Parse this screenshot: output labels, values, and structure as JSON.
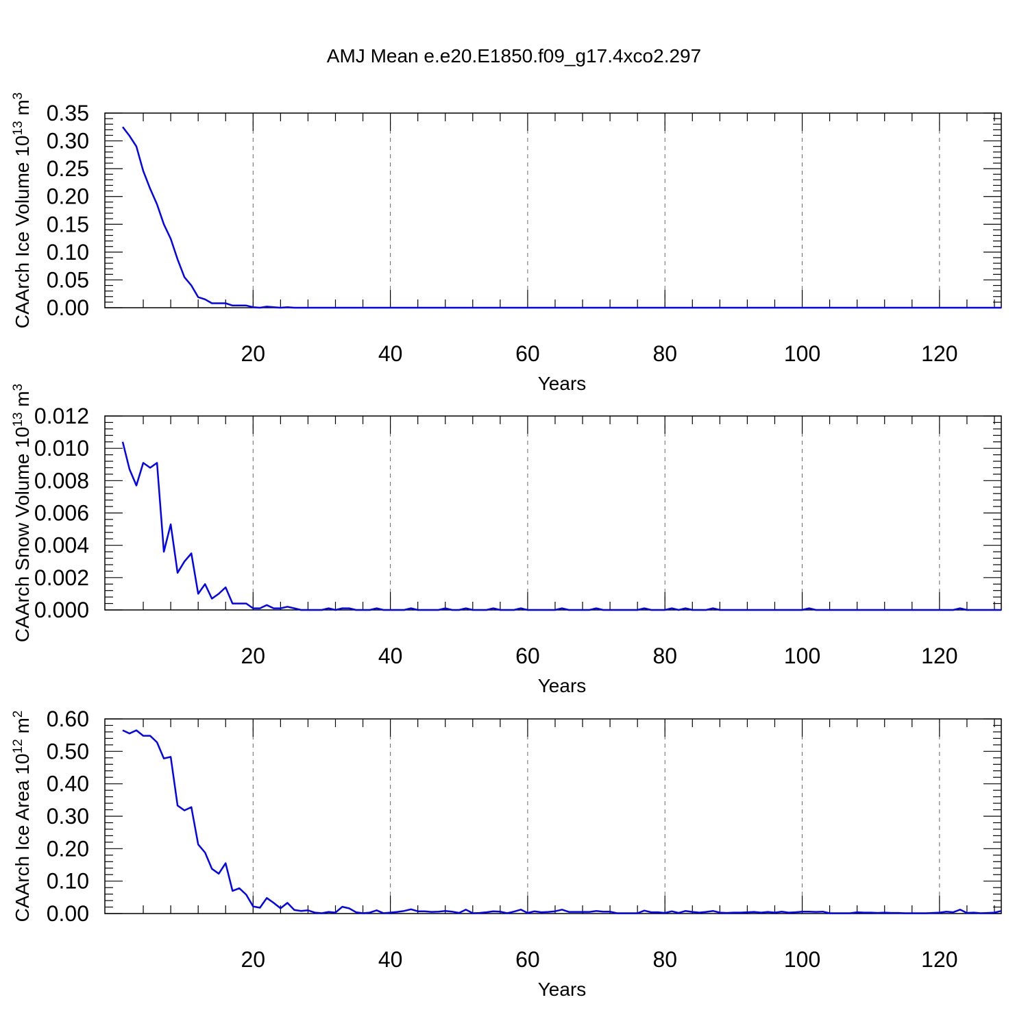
{
  "figure_title": "AMJ Mean e.e20.E1850.f09_g17.4xco2.297",
  "colors": {
    "series": "#0000ff",
    "axes": "#000000",
    "background": "#ffffff"
  },
  "chart_data": [
    {
      "type": "line",
      "ylabel": {
        "base": "CAArch Ice Volume 10",
        "exp": "13",
        "unit": " m",
        "unit_exp": "3"
      },
      "xlabel": "Years",
      "xlim": [
        1,
        129
      ],
      "ylim": [
        0,
        0.35
      ],
      "xticks": [
        20,
        40,
        60,
        80,
        100,
        120
      ],
      "yticks": [
        0.0,
        0.05,
        0.1,
        0.15,
        0.2,
        0.25,
        0.3,
        0.35
      ],
      "ytick_labels": [
        "0.00",
        "0.05",
        "0.10",
        "0.15",
        "0.20",
        "0.25",
        "0.30",
        "0.35"
      ],
      "y_minor_step": 0.01,
      "grid": "x-dashed",
      "series": [
        {
          "x_start": 1,
          "values": [
            0.325,
            0.309,
            0.29,
            0.246,
            0.214,
            0.186,
            0.15,
            0.124,
            0.087,
            0.055,
            0.04,
            0.019,
            0.015,
            0.008,
            0.008,
            0.008,
            0.004,
            0.004,
            0.004,
            0.001,
            0.0,
            0.002,
            0.001,
            0.0,
            0.001,
            0.0,
            0.0,
            0.0,
            0.0,
            0.0,
            0.0,
            0.0,
            0.0,
            0.0,
            0.0,
            0.0,
            0.0,
            0.0,
            0.0,
            0.0,
            0.0,
            0.0,
            0.0,
            0.0,
            0.0,
            0.0,
            0.0,
            0.0,
            0.0,
            0.0,
            0.0,
            0.0,
            0.0,
            0.0,
            0.0,
            0.0,
            0.0,
            0.0,
            0.0,
            0.0,
            0.0,
            0.0,
            0.0,
            0.0,
            0.0,
            0.0,
            0.0,
            0.0,
            0.0,
            0.0,
            0.0,
            0.0,
            0.0,
            0.0,
            0.0,
            0.0,
            0.0,
            0.0,
            0.0,
            0.0,
            0.0,
            0.0,
            0.0,
            0.0,
            0.0,
            0.0,
            0.0,
            0.0,
            0.0,
            0.0,
            0.0,
            0.0,
            0.0,
            0.0,
            0.0,
            0.0,
            0.0,
            0.0,
            0.0,
            0.0,
            0.0,
            0.0,
            0.0,
            0.0,
            0.0,
            0.0,
            0.0,
            0.0,
            0.0,
            0.0,
            0.0,
            0.0,
            0.0,
            0.0,
            0.0,
            0.0,
            0.0,
            0.0,
            0.0,
            0.0,
            0.0,
            0.0,
            0.0,
            0.0,
            0.0,
            0.0,
            0.0,
            0.0,
            0.0
          ]
        }
      ]
    },
    {
      "type": "line",
      "ylabel": {
        "base": "CAArch Snow Volume 10",
        "exp": "13",
        "unit": " m",
        "unit_exp": "3"
      },
      "xlabel": "Years",
      "xlim": [
        1,
        129
      ],
      "ylim": [
        0,
        0.012
      ],
      "xticks": [
        20,
        40,
        60,
        80,
        100,
        120
      ],
      "yticks": [
        0.0,
        0.002,
        0.004,
        0.006,
        0.008,
        0.01,
        0.012
      ],
      "ytick_labels": [
        "0.000",
        "0.002",
        "0.004",
        "0.006",
        "0.008",
        "0.010",
        "0.012"
      ],
      "y_minor_step": 0.0004,
      "grid": "x-dashed",
      "series": [
        {
          "x_start": 1,
          "values": [
            0.0104,
            0.0087,
            0.0077,
            0.0091,
            0.0088,
            0.0091,
            0.0036,
            0.0053,
            0.0023,
            0.003,
            0.0035,
            0.001,
            0.0016,
            0.0007,
            0.001,
            0.0014,
            0.0004,
            0.0004,
            0.0004,
            0.0001,
            0.0001,
            0.0003,
            0.0001,
            0.0001,
            0.0002,
            0.0001,
            0.0,
            0.0,
            0.0,
            0.0,
            0.0001,
            0.0,
            0.0001,
            0.0001,
            0.0,
            0.0,
            0.0,
            0.0001,
            0.0,
            0.0,
            0.0,
            0.0,
            0.0001,
            0.0,
            0.0,
            0.0,
            0.0,
            0.0001,
            0.0,
            0.0,
            0.0001,
            0.0,
            0.0,
            0.0,
            0.0001,
            0.0,
            0.0,
            0.0,
            0.0001,
            0.0,
            0.0,
            0.0,
            0.0,
            0.0,
            0.0001,
            0.0,
            0.0,
            0.0,
            0.0,
            0.0001,
            0.0,
            0.0,
            0.0,
            0.0,
            0.0,
            0.0,
            0.0001,
            0.0,
            0.0,
            0.0,
            0.0001,
            0.0,
            0.0001,
            0.0,
            0.0,
            0.0,
            0.0001,
            0.0,
            0.0,
            0.0,
            0.0,
            0.0,
            0.0,
            0.0,
            0.0,
            0.0,
            0.0,
            0.0,
            0.0,
            0.0,
            0.0001,
            0.0,
            0.0,
            0.0,
            0.0,
            0.0,
            0.0,
            0.0,
            0.0,
            0.0,
            0.0,
            0.0,
            0.0,
            0.0,
            0.0,
            0.0,
            0.0,
            0.0,
            0.0,
            0.0,
            0.0,
            0.0,
            0.0001,
            0.0,
            0.0,
            0.0,
            0.0,
            0.0,
            0.0
          ]
        }
      ]
    },
    {
      "type": "line",
      "ylabel": {
        "base": "CAArch Ice Area 10",
        "exp": "12",
        "unit": " m",
        "unit_exp": "2"
      },
      "xlabel": "Years",
      "xlim": [
        1,
        129
      ],
      "ylim": [
        0,
        0.6
      ],
      "xticks": [
        20,
        40,
        60,
        80,
        100,
        120
      ],
      "yticks": [
        0.0,
        0.1,
        0.2,
        0.3,
        0.4,
        0.5,
        0.6
      ],
      "ytick_labels": [
        "0.00",
        "0.10",
        "0.20",
        "0.30",
        "0.40",
        "0.50",
        "0.60"
      ],
      "y_minor_step": 0.02,
      "grid": "x-dashed",
      "series": [
        {
          "x_start": 1,
          "values": [
            0.565,
            0.555,
            0.565,
            0.548,
            0.548,
            0.528,
            0.478,
            0.483,
            0.333,
            0.318,
            0.328,
            0.213,
            0.188,
            0.138,
            0.123,
            0.155,
            0.07,
            0.078,
            0.058,
            0.022,
            0.018,
            0.048,
            0.033,
            0.016,
            0.033,
            0.011,
            0.008,
            0.01,
            0.003,
            0.001,
            0.005,
            0.003,
            0.021,
            0.016,
            0.004,
            0.001,
            0.003,
            0.01,
            0.001,
            0.003,
            0.005,
            0.008,
            0.013,
            0.007,
            0.007,
            0.005,
            0.006,
            0.008,
            0.006,
            0.002,
            0.012,
            0.001,
            0.002,
            0.004,
            0.007,
            0.006,
            0.001,
            0.006,
            0.012,
            0.002,
            0.007,
            0.004,
            0.005,
            0.007,
            0.012,
            0.005,
            0.005,
            0.005,
            0.005,
            0.008,
            0.006,
            0.006,
            0.001,
            0.001,
            0.001,
            0.001,
            0.009,
            0.004,
            0.004,
            0.002,
            0.007,
            0.002,
            0.008,
            0.005,
            0.003,
            0.005,
            0.008,
            0.003,
            0.002,
            0.003,
            0.003,
            0.004,
            0.005,
            0.003,
            0.005,
            0.003,
            0.006,
            0.003,
            0.004,
            0.006,
            0.006,
            0.005,
            0.006,
            0.001,
            0.001,
            0.001,
            0.001,
            0.004,
            0.003,
            0.003,
            0.002,
            0.003,
            0.002,
            0.002,
            0.001,
            0.001,
            0.001,
            0.001,
            0.002,
            0.003,
            0.006,
            0.004,
            0.012,
            0.002,
            0.003,
            0.001,
            0.002,
            0.003,
            0.008
          ]
        }
      ]
    }
  ]
}
